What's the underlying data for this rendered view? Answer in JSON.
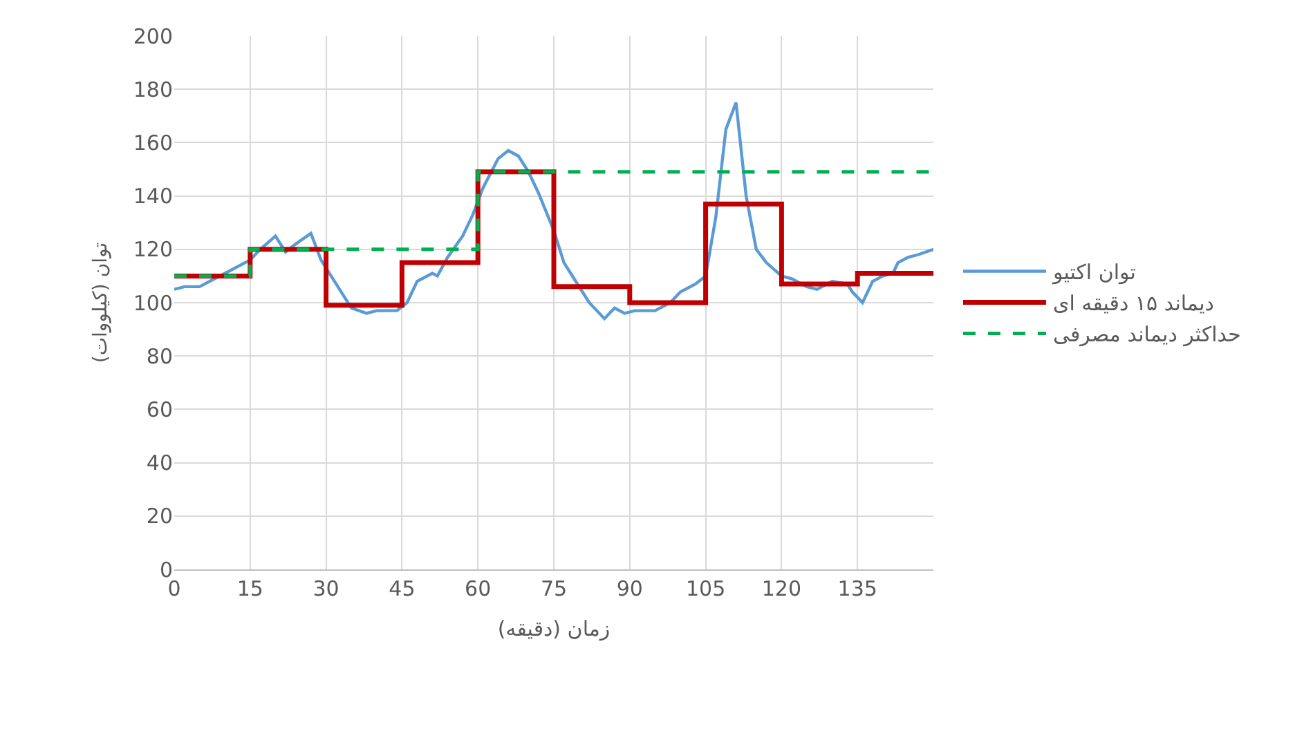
{
  "chart_data": {
    "type": "line",
    "xlabel": "زمان (دقیقه)",
    "ylabel": "توان (کیلووات)",
    "xlim": [
      0,
      150
    ],
    "xticks": [
      0,
      15,
      30,
      45,
      60,
      75,
      90,
      105,
      120,
      135
    ],
    "ylim": [
      0,
      200
    ],
    "yticks": [
      0,
      20,
      40,
      60,
      80,
      100,
      120,
      140,
      160,
      180,
      200
    ],
    "grid": true,
    "legend": "right",
    "marker": "none",
    "series": [
      {
        "name": "توان اکتیو",
        "color": "#5b9bd5",
        "line_style": "solid",
        "x": [
          0,
          2,
          5,
          8,
          11,
          15,
          17,
          20,
          22,
          24,
          27,
          29,
          31,
          33,
          35,
          38,
          40,
          44,
          46,
          48,
          51,
          52,
          54,
          57,
          59,
          61,
          64,
          66,
          68,
          70,
          72,
          75,
          77,
          79,
          82,
          85,
          87,
          89,
          91,
          95,
          98,
          100,
          103,
          105,
          107,
          109,
          111,
          113,
          115,
          117,
          120,
          122,
          125,
          127,
          130,
          133,
          134,
          136,
          138,
          140,
          142,
          143,
          145,
          147,
          150
        ],
        "values": [
          105,
          106,
          106,
          109,
          112,
          116,
          120,
          125,
          119,
          122,
          126,
          116,
          110,
          104,
          98,
          96,
          97,
          97,
          100,
          108,
          111,
          110,
          117,
          125,
          133,
          143,
          154,
          157,
          155,
          149,
          141,
          127,
          115,
          109,
          100,
          94,
          98,
          96,
          97,
          97,
          100,
          104,
          107,
          110,
          132,
          165,
          175,
          140,
          120,
          115,
          110,
          109,
          106,
          105,
          108,
          107,
          104,
          100,
          108,
          110,
          111,
          115,
          117,
          118,
          120
        ]
      },
      {
        "name": "دیماند ۱۵ دقیقه ای",
        "color": "#c00000",
        "type": "step",
        "line_style": "solid",
        "x": [
          0,
          15,
          30,
          45,
          60,
          75,
          90,
          105,
          120,
          135,
          150
        ],
        "values": [
          110,
          120,
          99,
          115,
          149,
          106,
          100,
          137,
          107,
          111,
          111
        ]
      },
      {
        "name": "حداکثر دیماند مصرفی",
        "color": "#00b050",
        "type": "step",
        "line_style": "dashed",
        "x": [
          0,
          15,
          60,
          150
        ],
        "values": [
          110,
          120,
          149,
          149
        ]
      }
    ]
  }
}
